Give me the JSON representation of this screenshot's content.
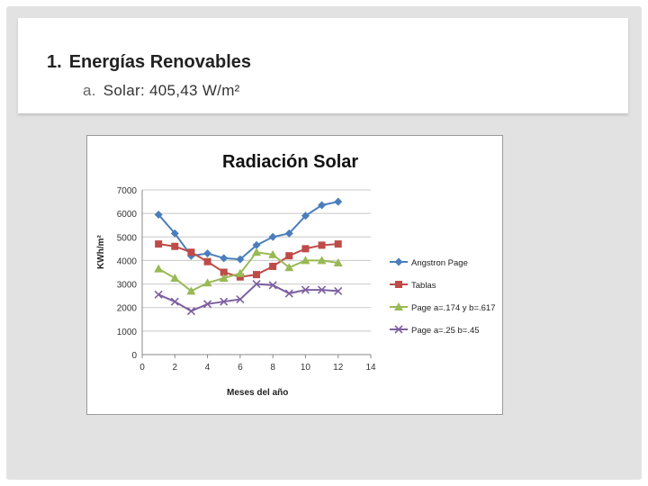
{
  "slide": {
    "heading_number": "1.",
    "heading": "Energías Renovables",
    "sub_marker": "a.",
    "sub_text": "Solar: 405,43 W/m²"
  },
  "colors": {
    "frame": "#e2e2e2",
    "series": [
      "#4a7ebb",
      "#be4b48",
      "#98b954",
      "#7d60a0"
    ]
  },
  "chart_data": {
    "type": "line",
    "title": "Radiación Solar",
    "xlabel": "Meses del año",
    "ylabel": "KWh/m²",
    "xlim": [
      0,
      14
    ],
    "ylim": [
      0,
      7000
    ],
    "xticks": [
      0,
      2,
      4,
      6,
      8,
      10,
      12,
      14
    ],
    "yticks": [
      0,
      1000,
      2000,
      3000,
      4000,
      5000,
      6000,
      7000
    ],
    "grid": "horizontal",
    "legend_position": "right",
    "x": [
      1,
      2,
      3,
      4,
      5,
      6,
      7,
      8,
      9,
      10,
      11,
      12
    ],
    "series": [
      {
        "name": "Angstron Page",
        "marker": "diamond",
        "values": [
          5950,
          5150,
          4200,
          4300,
          4100,
          4050,
          4650,
          5000,
          5150,
          5900,
          6350,
          6500
        ]
      },
      {
        "name": "Tablas",
        "marker": "square",
        "values": [
          4700,
          4600,
          4350,
          3950,
          3500,
          3300,
          3400,
          3750,
          4200,
          4500,
          4650,
          4700
        ]
      },
      {
        "name": "Page a=.174 y b=.617",
        "marker": "triangle",
        "values": [
          3650,
          3250,
          2700,
          3050,
          3250,
          3450,
          4350,
          4250,
          3700,
          4000,
          4000,
          3900
        ]
      },
      {
        "name": "Page a=.25 b=.45",
        "marker": "x",
        "values": [
          2550,
          2250,
          1850,
          2150,
          2250,
          2350,
          3000,
          2950,
          2600,
          2750,
          2750,
          2700
        ]
      }
    ]
  }
}
